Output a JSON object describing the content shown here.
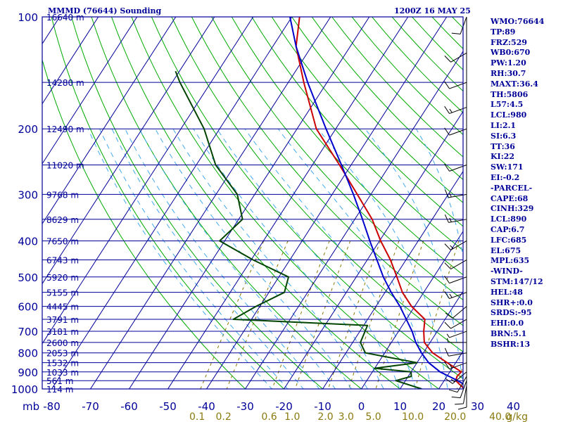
{
  "header": {
    "station_title": "MMMD (76644) Sounding",
    "datetime": "1200Z 16 MAY 25"
  },
  "indices": [
    "WMO:76644",
    "TP:89",
    "FRZ:529",
    "WB0:670",
    "PW:1.20",
    "RH:30.7",
    "MAXT:36.4",
    "TH:5806",
    "L57:4.5",
    "LCL:980",
    "LI:2.1",
    "SI:6.3",
    "TT:36",
    "KI:22",
    "SW:171",
    "EI:-0.2",
    "-PARCEL-",
    "CAPE:68",
    "CINH:329",
    "LCL:890",
    "CAP:6.7",
    "LFC:685",
    "EL:675",
    "MPL:635",
    "-WIND-",
    "STM:147/12",
    "HEL:48",
    "SHR+:0.0",
    "SRDS:-95",
    "EHI:0.0",
    "BRN:5.1",
    "BSHR:13"
  ],
  "chart_data": {
    "type": "skew-t",
    "pressure_unit_label": "mb",
    "pressure_ticks": [
      {
        "p": 100,
        "label": "100"
      },
      {
        "p": 200,
        "label": "200"
      },
      {
        "p": 300,
        "label": "300"
      },
      {
        "p": 400,
        "label": "400"
      },
      {
        "p": 500,
        "label": "500"
      },
      {
        "p": 600,
        "label": "600"
      },
      {
        "p": 700,
        "label": "700"
      },
      {
        "p": 800,
        "label": "800"
      },
      {
        "p": 900,
        "label": "900"
      },
      {
        "p": 1000,
        "label": "1000"
      }
    ],
    "height_labels": [
      {
        "p": 100,
        "label": "16640 m"
      },
      {
        "p": 150,
        "label": "14280 m"
      },
      {
        "p": 200,
        "label": "12490 m"
      },
      {
        "p": 250,
        "label": "11020 m"
      },
      {
        "p": 300,
        "label": "9768 m"
      },
      {
        "p": 350,
        "label": "8629 m"
      },
      {
        "p": 400,
        "label": "7650 m"
      },
      {
        "p": 450,
        "label": "6743 m"
      },
      {
        "p": 500,
        "label": "5920 m"
      },
      {
        "p": 550,
        "label": "5155 m"
      },
      {
        "p": 600,
        "label": "4445 m"
      },
      {
        "p": 650,
        "label": "3791 m"
      },
      {
        "p": 700,
        "label": "3181 m"
      },
      {
        "p": 750,
        "label": "2600 m"
      },
      {
        "p": 800,
        "label": "2053 m"
      },
      {
        "p": 850,
        "label": "1532 m"
      },
      {
        "p": 900,
        "label": "1033 m"
      },
      {
        "p": 950,
        "label": "561 m"
      },
      {
        "p": 1000,
        "label": "114 m"
      }
    ],
    "temp_ticks": [
      "-80",
      "-70",
      "-60",
      "-50",
      "-40",
      "-30",
      "-20",
      "-10",
      "0",
      "10",
      "20",
      "30",
      "40"
    ],
    "mixing_ratio_labels": [
      "0.1",
      "0.2",
      "0.6",
      "1.0",
      "2.0",
      "3.0",
      "5.0",
      "10.0",
      "20.0",
      "40.0",
      "g/kg"
    ],
    "temperature": [
      [
        1000,
        26.6
      ],
      [
        950,
        23.0
      ],
      [
        925,
        22.6
      ],
      [
        900,
        23.0
      ],
      [
        850,
        17.8
      ],
      [
        800,
        12.4
      ],
      [
        750,
        8.5
      ],
      [
        700,
        6.5
      ],
      [
        650,
        4.8
      ],
      [
        600,
        -0.8
      ],
      [
        550,
        -5.5
      ],
      [
        500,
        -9.5
      ],
      [
        450,
        -14.0
      ],
      [
        400,
        -19.7
      ],
      [
        350,
        -25.5
      ],
      [
        300,
        -33.5
      ],
      [
        250,
        -43.0
      ],
      [
        200,
        -55.0
      ],
      [
        150,
        -66.0
      ],
      [
        120,
        -74.0
      ],
      [
        100,
        -78.0
      ]
    ],
    "dewpoint": [
      [
        1000,
        15.6
      ],
      [
        950,
        7.5
      ],
      [
        925,
        10.8
      ],
      [
        900,
        10.0
      ],
      [
        880,
        0.0
      ],
      [
        850,
        10.0
      ],
      [
        800,
        -5.0
      ],
      [
        750,
        -8.0
      ],
      [
        675,
        -9.0
      ],
      [
        650,
        -44.7
      ],
      [
        600,
        -41.0
      ],
      [
        550,
        -36.0
      ],
      [
        500,
        -37.5
      ],
      [
        450,
        -49.5
      ],
      [
        400,
        -61.3
      ],
      [
        350,
        -59.0
      ],
      [
        300,
        -64.5
      ],
      [
        250,
        -75.0
      ],
      [
        200,
        -84.0
      ],
      [
        150,
        -98.0
      ],
      [
        140,
        -101.0
      ]
    ],
    "parcel": [
      [
        1000,
        28.5
      ],
      [
        950,
        23.5
      ],
      [
        900,
        17.5
      ],
      [
        850,
        13.0
      ],
      [
        800,
        9.5
      ],
      [
        750,
        6.3
      ],
      [
        700,
        3.5
      ],
      [
        650,
        0.0
      ],
      [
        600,
        -3.8
      ],
      [
        550,
        -8.4
      ],
      [
        500,
        -13.0
      ],
      [
        450,
        -17.5
      ],
      [
        400,
        -22.5
      ],
      [
        350,
        -28.0
      ],
      [
        300,
        -34.5
      ],
      [
        250,
        -42.5
      ],
      [
        200,
        -52.5
      ],
      [
        150,
        -65.0
      ],
      [
        120,
        -74.0
      ],
      [
        100,
        -80.5
      ]
    ],
    "winds": [
      {
        "p": 1000,
        "dir": 180,
        "spd": 10
      },
      {
        "p": 980,
        "dir": 190,
        "spd": 10
      },
      {
        "p": 950,
        "dir": 200,
        "spd": 10
      },
      {
        "p": 925,
        "dir": 210,
        "spd": 10
      },
      {
        "p": 900,
        "dir": 230,
        "spd": 15
      },
      {
        "p": 850,
        "dir": 250,
        "spd": 15
      },
      {
        "p": 800,
        "dir": 260,
        "spd": 10
      },
      {
        "p": 750,
        "dir": 270,
        "spd": 5
      },
      {
        "p": 700,
        "dir": 250,
        "spd": 5
      },
      {
        "p": 650,
        "dir": 240,
        "spd": 10
      },
      {
        "p": 600,
        "dir": 230,
        "spd": 10
      },
      {
        "p": 550,
        "dir": 250,
        "spd": 15
      },
      {
        "p": 500,
        "dir": 250,
        "spd": 10
      },
      {
        "p": 450,
        "dir": 240,
        "spd": 10
      },
      {
        "p": 400,
        "dir": 240,
        "spd": 15
      },
      {
        "p": 350,
        "dir": 260,
        "spd": 15
      },
      {
        "p": 300,
        "dir": 260,
        "spd": 15
      },
      {
        "p": 250,
        "dir": 250,
        "spd": 10
      },
      {
        "p": 200,
        "dir": 250,
        "spd": 10
      },
      {
        "p": 175,
        "dir": 250,
        "spd": 15
      },
      {
        "p": 150,
        "dir": 250,
        "spd": 10
      },
      {
        "p": 125,
        "dir": 240,
        "spd": 10
      },
      {
        "p": 100,
        "dir": 200,
        "spd": 10
      }
    ],
    "colors": {
      "grid": "#000099",
      "dry_adiabat": "#00aa00",
      "moist_adiabat": "#44aaee",
      "mixing_ratio": "#887700",
      "temperature": "#cc0000",
      "dewpoint": "#004400",
      "parcel": "#0000cc",
      "wind": "#000000"
    }
  }
}
